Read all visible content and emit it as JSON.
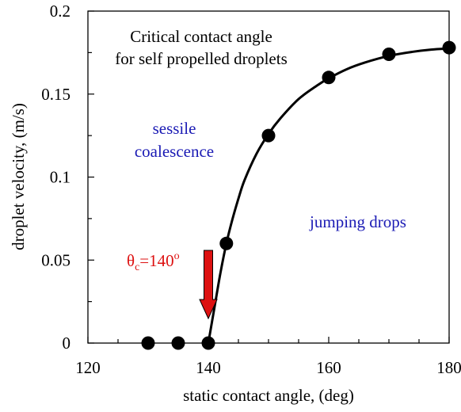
{
  "chart_data": {
    "type": "scatter",
    "title": "",
    "xlabel": "static contact angle, (deg)",
    "ylabel": "droplet velocity, (m/s)",
    "xlim": [
      120,
      180
    ],
    "ylim": [
      0,
      0.2
    ],
    "xticks": [
      {
        "value": 120,
        "label": "120"
      },
      {
        "value": 140,
        "label": "140"
      },
      {
        "value": 160,
        "label": "160"
      },
      {
        "value": 180,
        "label": "180"
      }
    ],
    "yticks": [
      {
        "value": 0,
        "label": "0"
      },
      {
        "value": 0.05,
        "label": "0.05"
      },
      {
        "value": 0.1,
        "label": "0.1"
      },
      {
        "value": 0.15,
        "label": "0.15"
      },
      {
        "value": 0.2,
        "label": "0.2"
      }
    ],
    "grid": false,
    "series": [
      {
        "type": "scatter",
        "color": "#000000",
        "x": [
          130,
          135,
          140,
          143,
          150,
          160,
          170,
          180
        ],
        "y": [
          0,
          0,
          0,
          0.06,
          0.125,
          0.16,
          0.174,
          0.178
        ]
      },
      {
        "type": "line",
        "color": "#000000",
        "x": [
          140,
          141,
          142,
          143,
          144,
          145,
          146,
          148,
          150,
          152,
          155,
          158,
          160,
          163,
          166,
          170,
          174,
          177,
          180
        ],
        "y": [
          0,
          0.021,
          0.042,
          0.06,
          0.0745,
          0.087,
          0.098,
          0.114,
          0.126,
          0.1355,
          0.147,
          0.155,
          0.1595,
          0.165,
          0.169,
          0.173,
          0.1755,
          0.1768,
          0.1775
        ]
      }
    ],
    "annotations": {
      "title_line1": "Critical contact angle",
      "title_line2": "for self propelled droplets",
      "sessile_line1": "sessile",
      "sessile_line2": "coalescence",
      "jumping": "jumping drops",
      "theta_symbol": "θ",
      "theta_sub": "c",
      "theta_eq": "=140",
      "theta_deg": "o",
      "text_color_blue": "#1a1ab4",
      "text_color_red": "#dd1111",
      "arrow_color": "#dd1111",
      "arrow_x": 140
    }
  }
}
